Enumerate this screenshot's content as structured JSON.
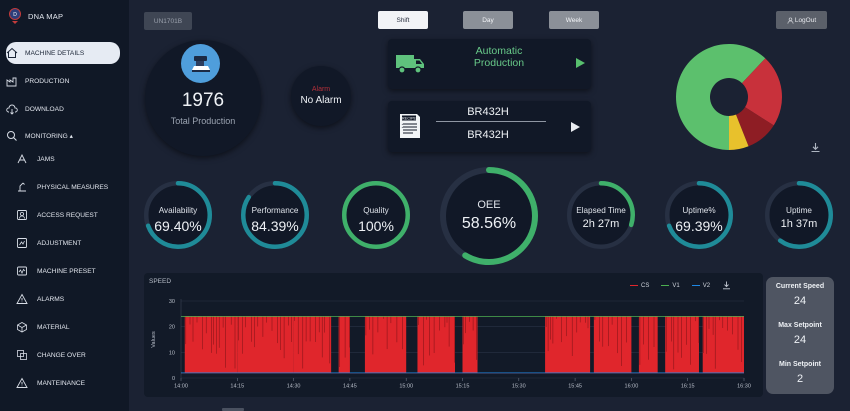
{
  "app": {
    "brand": "DNA MAP"
  },
  "sidebar": {
    "items": [
      {
        "label": "MACHINE DETAILS",
        "icon": "home-icon"
      },
      {
        "label": "PRODUCTION",
        "icon": "factory-icon"
      },
      {
        "label": "DOWNLOAD",
        "icon": "cloud-download-icon"
      },
      {
        "label": "MONITORING ▴",
        "icon": "search-icon"
      },
      {
        "label": "JAMS",
        "icon": "jam-icon"
      },
      {
        "label": "PHYSICAL MEASURES",
        "icon": "measure-icon"
      },
      {
        "label": "ACCESS REQUEST",
        "icon": "access-icon"
      },
      {
        "label": "ADJUSTMENT",
        "icon": "adjust-icon"
      },
      {
        "label": "MACHINE PRESET",
        "icon": "preset-icon"
      },
      {
        "label": "ALARMS",
        "icon": "warning-icon"
      },
      {
        "label": "MATERIAL",
        "icon": "material-icon"
      },
      {
        "label": "CHANGE OVER",
        "icon": "changeover-icon"
      },
      {
        "label": "MANTEINANCE",
        "icon": "maintenance-icon"
      }
    ]
  },
  "topbar": {
    "machine": "UN1701B",
    "periods": [
      "Shift",
      "Day",
      "Week"
    ],
    "active_period": "Shift",
    "logout": "LogOut"
  },
  "summary": {
    "total_value": "1976",
    "total_label": "Total Production",
    "alarm_title": "Alarm",
    "alarm_value": "No Alarm",
    "mode": "Automatic Production",
    "recipe_icon_text": "RECIPE",
    "recipe_top": "BR432H",
    "recipe_bottom": "BR432H"
  },
  "status_donut": {
    "colors": [
      "#5cc06d",
      "#c8313b",
      "#8e1d24",
      "#e8c12c"
    ],
    "values": [
      0.62,
      0.22,
      0.1,
      0.06
    ]
  },
  "kpis": [
    {
      "label": "Availability",
      "value": "69.40%",
      "fraction": 0.694,
      "color": "#1f8b98"
    },
    {
      "label": "Performance",
      "value": "84.39%",
      "fraction": 0.8439,
      "color": "#1f8b98"
    },
    {
      "label": "Quality",
      "value": "100%",
      "fraction": 1.0,
      "color": "#3fb06a"
    },
    {
      "label": "OEE",
      "value": "58.56%",
      "fraction": 0.5856,
      "color": "#3fb06a"
    },
    {
      "label": "Elapsed Time",
      "value": "2h 27m",
      "fraction": 0.3,
      "color": "#3fb06a"
    },
    {
      "label": "Uptime%",
      "value": "69.39%",
      "fraction": 0.6939,
      "color": "#1f8b98"
    },
    {
      "label": "Uptime",
      "value": "1h 37m",
      "fraction": 0.6,
      "color": "#1f8b98"
    }
  ],
  "chart_data": {
    "type": "line",
    "title": "SPEED",
    "ylabel": "Values",
    "xlabel": "",
    "ylim": [
      0,
      30
    ],
    "yticks": [
      0,
      10,
      20,
      30
    ],
    "xticks": [
      "14:00",
      "14:15",
      "14:30",
      "14:45",
      "15:00",
      "15:15",
      "15:30",
      "15:45",
      "16:00",
      "16:15",
      "16:30"
    ],
    "xlim": [
      "14:00",
      "16:30"
    ],
    "grid": true,
    "legend_position": "top-right",
    "series": [
      {
        "name": "CS",
        "color": "#e0262c",
        "max": 24,
        "min": 2,
        "active_intervals": [
          [
            "14:01",
            "14:15"
          ],
          [
            "14:15",
            "14:30"
          ],
          [
            "14:30",
            "14:40"
          ],
          [
            "14:42",
            "14:45"
          ],
          [
            "14:49",
            "15:00"
          ],
          [
            "15:03",
            "15:13"
          ],
          [
            "15:15",
            "15:19"
          ],
          [
            "15:37",
            "15:49"
          ],
          [
            "15:50",
            "16:00"
          ],
          [
            "16:02",
            "16:07"
          ],
          [
            "16:09",
            "16:18"
          ],
          [
            "16:19",
            "16:30"
          ]
        ]
      },
      {
        "name": "V1",
        "value": 24,
        "color": "#4caf50"
      },
      {
        "name": "V2",
        "value": 2,
        "color": "#1e88e5"
      }
    ]
  },
  "speed_panel": {
    "current_label": "Current Speed",
    "current_value": "24",
    "max_label": "Max Setpoint",
    "max_value": "24",
    "min_label": "Min Setpoint",
    "min_value": "2"
  }
}
